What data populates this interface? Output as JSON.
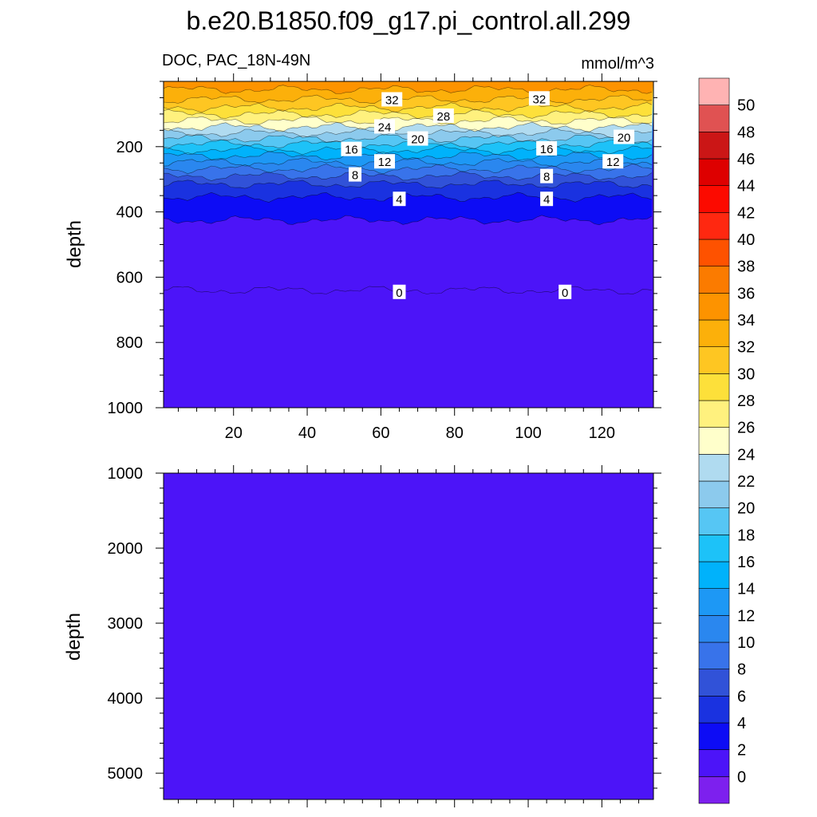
{
  "title": "b.e20.B1850.f09_g17.pi_control.all.299",
  "subtitle_left": "DOC, PAC_18N-49N",
  "subtitle_right": "mmol/m^3",
  "chart_data": {
    "type": "heatmap",
    "title": "b.e20.B1850.f09_g17.pi_control.all.299",
    "variable": "DOC",
    "region": "PAC_18N-49N",
    "units": "mmol/m^3",
    "x": {
      "label": "",
      "range": [
        1,
        134
      ],
      "ticks": [
        20,
        40,
        60,
        80,
        100,
        120
      ]
    },
    "panels": [
      {
        "name": "upper",
        "ylabel": "depth",
        "ylim": [
          1000,
          0
        ],
        "yticks": [
          200,
          400,
          600,
          800,
          1000
        ]
      },
      {
        "name": "lower",
        "ylabel": "depth",
        "ylim": [
          5350,
          1000
        ],
        "yticks": [
          1000,
          2000,
          3000,
          4000,
          5000
        ]
      }
    ],
    "contour_levels": [
      0,
      2,
      4,
      6,
      8,
      10,
      12,
      14,
      16,
      18,
      20,
      22,
      24,
      26,
      28,
      30,
      32,
      34,
      36,
      38,
      40,
      42,
      44,
      46,
      48,
      50
    ],
    "contour_depths": [
      {
        "level": 34,
        "depth": 25
      },
      {
        "level": 32,
        "depth": 55
      },
      {
        "level": 30,
        "depth": 80
      },
      {
        "level": 28,
        "depth": 100
      },
      {
        "level": 26,
        "depth": 120
      },
      {
        "level": 24,
        "depth": 140
      },
      {
        "level": 22,
        "depth": 158
      },
      {
        "level": 20,
        "depth": 175
      },
      {
        "level": 18,
        "depth": 192
      },
      {
        "level": 16,
        "depth": 210
      },
      {
        "level": 14,
        "depth": 228
      },
      {
        "level": 12,
        "depth": 248
      },
      {
        "level": 10,
        "depth": 268
      },
      {
        "level": 8,
        "depth": 290
      },
      {
        "level": 6,
        "depth": 315
      },
      {
        "level": 4,
        "depth": 355
      },
      {
        "level": 2,
        "depth": 425
      },
      {
        "level": 0,
        "depth": 640
      }
    ],
    "contour_labels": [
      {
        "text": "32",
        "x": 63,
        "depth": 55
      },
      {
        "text": "32",
        "x": 103,
        "depth": 52
      },
      {
        "text": "28",
        "x": 77,
        "depth": 105
      },
      {
        "text": "24",
        "x": 61,
        "depth": 138
      },
      {
        "text": "20",
        "x": 70,
        "depth": 175
      },
      {
        "text": "20",
        "x": 126,
        "depth": 170
      },
      {
        "text": "16",
        "x": 52,
        "depth": 207
      },
      {
        "text": "16",
        "x": 105,
        "depth": 205
      },
      {
        "text": "12",
        "x": 61,
        "depth": 245
      },
      {
        "text": "12",
        "x": 123,
        "depth": 245
      },
      {
        "text": "8",
        "x": 53,
        "depth": 285
      },
      {
        "text": "8",
        "x": 105,
        "depth": 290
      },
      {
        "text": "4",
        "x": 65,
        "depth": 360
      },
      {
        "text": "4",
        "x": 105,
        "depth": 360
      },
      {
        "text": "0",
        "x": 65,
        "depth": 645
      },
      {
        "text": "0",
        "x": 110,
        "depth": 645
      }
    ],
    "colorbar": {
      "labels": [
        "0",
        "2",
        "4",
        "6",
        "8",
        "10",
        "12",
        "14",
        "16",
        "18",
        "20",
        "22",
        "24",
        "26",
        "28",
        "30",
        "32",
        "34",
        "36",
        "38",
        "40",
        "42",
        "44",
        "46",
        "48",
        "50"
      ],
      "colors": [
        "#7d20ee",
        "#4c14f8",
        "#0d0cf5",
        "#1a32e0",
        "#3152d8",
        "#3873ea",
        "#2a87ef",
        "#1d98f5",
        "#00b2fb",
        "#1dc2f8",
        "#56c6f4",
        "#8ccaed",
        "#b0dbf0",
        "#ffffcb",
        "#fff17e",
        "#fde03a",
        "#fec622",
        "#fcb00a",
        "#fd9300",
        "#fb7b00",
        "#fe5200",
        "#ff2810",
        "#fc0a00",
        "#de0000",
        "#cb1616",
        "#e05252",
        "#ffb3b3"
      ]
    }
  }
}
